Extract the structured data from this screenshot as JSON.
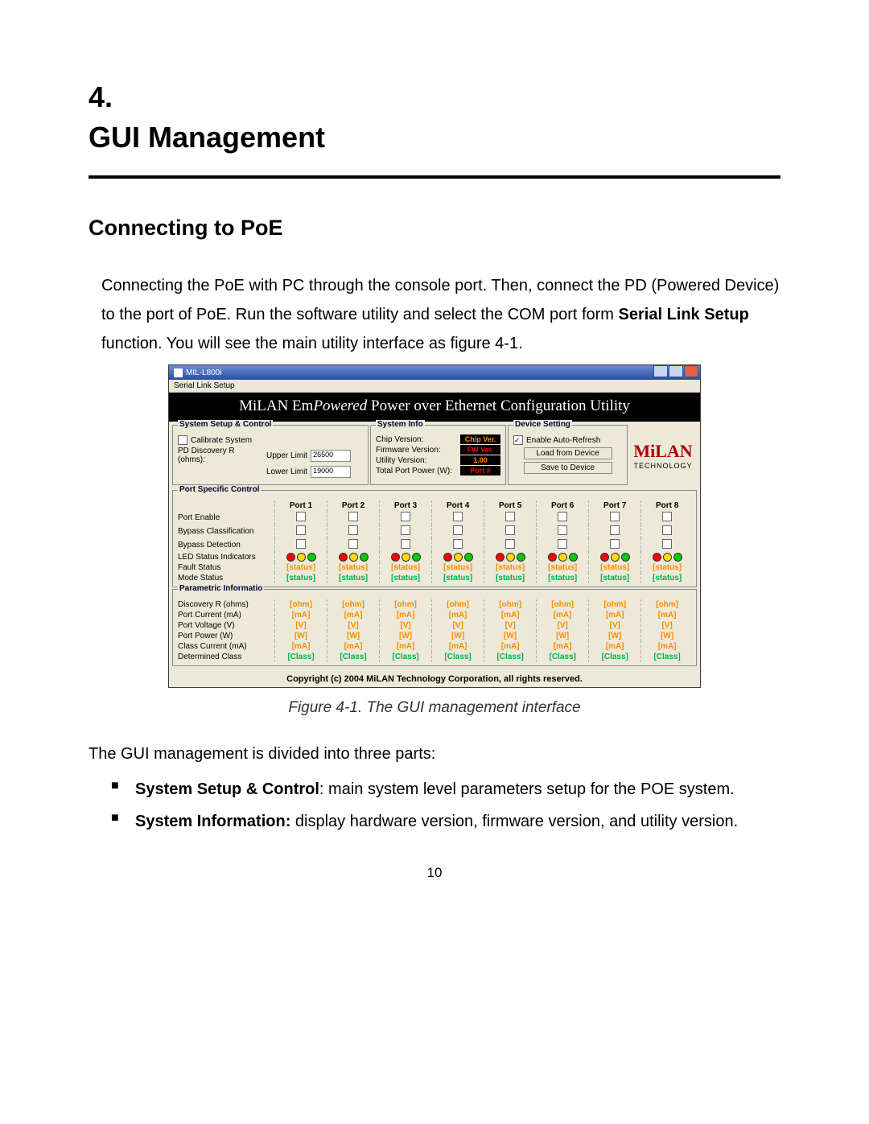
{
  "doc": {
    "chapter_num": "4.",
    "chapter_title": "GUI Management",
    "section_title": "Connecting to PoE",
    "para1_a": "Connecting the PoE with PC through the console port. Then, connect the PD (Powered Device) to the port of PoE. Run the software utility and select the COM port form ",
    "para1_b": "Serial Link Setup",
    "para1_c": " function. You will see the main utility interface as figure 4-1.",
    "caption": "Figure 4-1. The GUI management interface",
    "after1": "The GUI management is divided into three parts:",
    "bul1_b": "System Setup & Control",
    "bul1_t": ": main system level parameters setup for the POE system.",
    "bul2_b": "System Information:",
    "bul2_t": " display hardware version, firmware version, and utility version.",
    "pagenum": "10"
  },
  "app": {
    "window_title": "MIL-L800i",
    "menu_item": "Serial Link Setup",
    "banner_a": "MiLAN Em",
    "banner_b": "Powered",
    "banner_c": " Power over Ethernet Configuration Utility",
    "sys": {
      "legend": "System Setup & Control",
      "calibrate": "Calibrate System",
      "pd_discovery": "PD Discovery R (ohms):",
      "upper": "Upper Limit",
      "upper_val": "26500",
      "lower": "Lower Limit",
      "lower_val": "19000"
    },
    "info": {
      "legend": "System Info",
      "chip_label": "Chip Version:",
      "chip_val": "Chip Ver.",
      "chip_color": "#ff8c00",
      "fw_label": "Firmware Version:",
      "fw_val": "FW Ver.",
      "fw_color": "#ff0000",
      "util_label": "Utility Version:",
      "util_val": "1.00",
      "util_color": "#ff8c00",
      "power_label": "Total Port Power (W):",
      "power_val": "Port #",
      "power_color": "#ff0000"
    },
    "dev": {
      "legend": "Device Setting",
      "auto_refresh": "Enable Auto-Refresh",
      "load": "Load from Device",
      "save": "Save to Device"
    },
    "logo": {
      "brand": "MiLAN",
      "sub": "TECHNOLOGY"
    },
    "port_specific": {
      "legend": "Port Specific Control",
      "rows": [
        {
          "label": "Port Enable",
          "type": "check"
        },
        {
          "label": "Bypass Classification",
          "type": "check"
        },
        {
          "label": "Bypass Detection",
          "type": "check"
        },
        {
          "label": "LED Status Indicators",
          "type": "leds"
        },
        {
          "label": "Fault Status",
          "type": "stat",
          "text": "[status]",
          "color": "#ff8c00"
        },
        {
          "label": "Mode Status",
          "type": "stat",
          "text": "[status]",
          "color": "#00b050"
        }
      ],
      "ports": [
        "Port 1",
        "Port 2",
        "Port 3",
        "Port 4",
        "Port 5",
        "Port 6",
        "Port 7",
        "Port 8"
      ]
    },
    "parametric": {
      "legend": "Parametric Informatio",
      "rows": [
        {
          "label": "Discovery R (ohms)",
          "text": "[ohm]",
          "color": "#ff8c00"
        },
        {
          "label": "Port Current (mA)",
          "text": "[mA]",
          "color": "#ff8c00"
        },
        {
          "label": "Port Voltage (V)",
          "text": "[V]",
          "color": "#ff8c00"
        },
        {
          "label": "Port Power (W)",
          "text": "[W]",
          "color": "#ff8c00"
        },
        {
          "label": "Class Current (mA)",
          "text": "[mA]",
          "color": "#ff8c00"
        },
        {
          "label": "Determined Class",
          "text": "[Class]",
          "color": "#00b050"
        }
      ]
    },
    "led_pattern": [
      "#ff0000",
      "#ffdd00",
      "#00cc00"
    ],
    "copyright": "Copyright (c) 2004 MiLAN Technology Corporation, all rights reserved."
  }
}
